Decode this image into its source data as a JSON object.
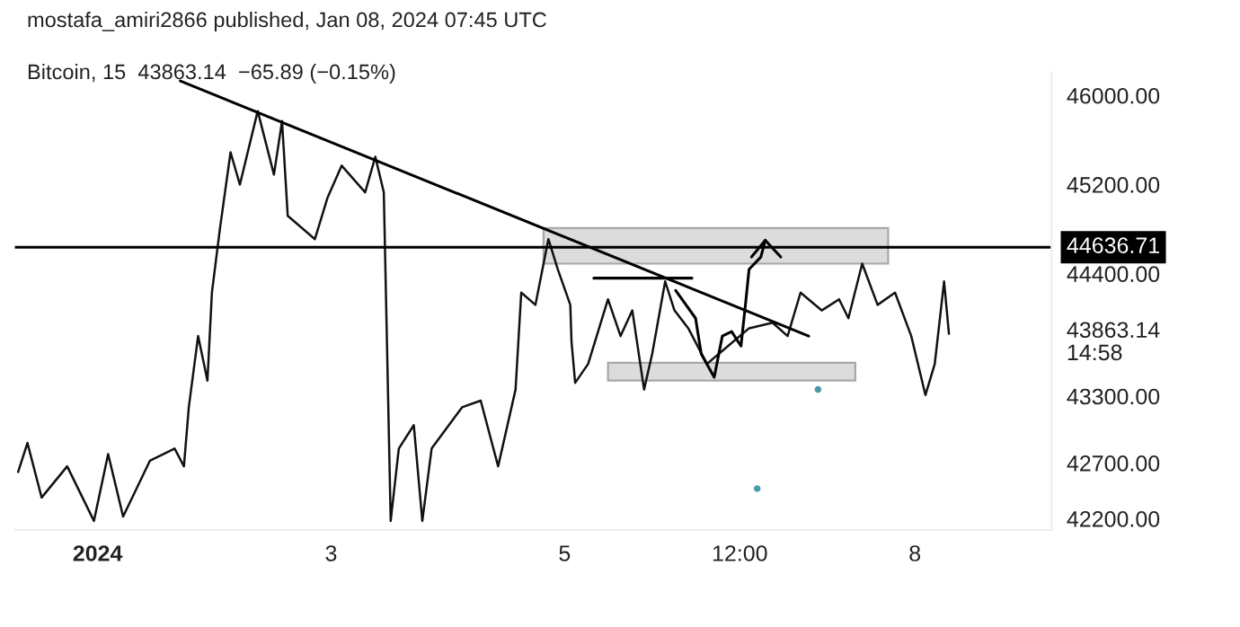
{
  "chart_data": {
    "type": "line",
    "subtitle": "mostafa_amiri2866 published, Jan 08, 2024 07:45 UTC",
    "title": "Bitcoin, 15  43863.14  −65.89 (−0.15%)",
    "series": [
      {
        "color": "#111111",
        "x": [
          "2023-12-31T07:40",
          "2023-12-31T09:35",
          "2023-12-31T12:30",
          "2023-12-31T17:45",
          "2023-12-31T23:15",
          "2024-01-01T02:10",
          "2024-01-01T05:15",
          "2024-01-01T10:45",
          "2024-01-01T15:50",
          "2024-01-01T17:45",
          "2024-01-01T18:45",
          "2024-01-01T20:40",
          "2024-01-01T22:35",
          "2024-01-01T23:30",
          "2024-01-02T01:10",
          "2024-01-02T03:20",
          "2024-01-02T05:15",
          "2024-01-02T08:55",
          "2024-01-02T12:15",
          "2024-01-02T13:55",
          "2024-01-02T15:05",
          "2024-01-02T20:40",
          "2024-01-02T23:15",
          "2024-01-03T02:10",
          "2024-01-03T07:00",
          "2024-01-03T09:05",
          "2024-01-03T10:50",
          "2024-01-03T12:15",
          "2024-01-03T13:55",
          "2024-01-03T17:00",
          "2024-01-03T18:45",
          "2024-01-03T20:40",
          "2024-01-04T02:55",
          "2024-01-04T06:45",
          "2024-01-04T10:20",
          "2024-01-04T13:55",
          "2024-01-04T15:05",
          "2024-01-04T18:00",
          "2024-01-04T20:40",
          "2024-01-04T22:35",
          "2024-01-05T01:10",
          "2024-01-05T01:25",
          "2024-01-05T02:10",
          "2024-01-05T04:50",
          "2024-01-05T08:55",
          "2024-01-05T11:30",
          "2024-01-05T13:55",
          "2024-01-05T16:20",
          "2024-01-05T18:00",
          "2024-01-05T20:40",
          "2024-01-05T22:35",
          "2024-01-06T01:25",
          "2024-01-06T05:15",
          "2024-01-06T09:35",
          "2024-01-06T13:55",
          "2024-01-06T18:45",
          "2024-01-06T21:50",
          "2024-01-07T00:30",
          "2024-01-07T04:50",
          "2024-01-07T08:25",
          "2024-01-07T10:20",
          "2024-01-07T13:10",
          "2024-01-07T16:20",
          "2024-01-07T19:55",
          "2024-01-07T23:15",
          "2024-01-08T02:10",
          "2024-01-08T04:05",
          "2024-01-08T06:00",
          "2024-01-08T07:00"
        ],
        "values": [
          42620,
          42880,
          42390,
          42670,
          42180,
          42780,
          42220,
          42720,
          42830,
          42670,
          43200,
          43840,
          43440,
          44230,
          44810,
          45490,
          45200,
          45860,
          45290,
          45770,
          44920,
          44710,
          45080,
          45370,
          45130,
          45450,
          45130,
          42180,
          42830,
          43040,
          42180,
          42830,
          43200,
          43260,
          42670,
          43360,
          44230,
          44120,
          44710,
          44440,
          44120,
          43790,
          43420,
          43590,
          44170,
          43840,
          44070,
          43360,
          43680,
          44330,
          44070,
          43910,
          43590,
          43750,
          43910,
          43960,
          43840,
          44230,
          44070,
          44170,
          44000,
          44490,
          44120,
          44230,
          43840,
          43310,
          43590,
          44330,
          43860
        ]
      },
      {
        "type": "line",
        "color": "#000000",
        "x": [
          "2024-01-01T17:00",
          "2024-01-07T02:10"
        ],
        "values": [
          46130,
          43840
        ]
      },
      {
        "type": "line",
        "color": "#000000",
        "x": [
          "2024-01-05T06:00",
          "2024-01-06T02:10"
        ],
        "values": [
          44360,
          44360
        ]
      },
      {
        "type": "line",
        "color": "#000000",
        "x": [
          "2024-01-05T22:50",
          "2024-01-06T02:55",
          "2024-01-06T04:05",
          "2024-01-06T06:45",
          "2024-01-06T08:25",
          "2024-01-06T10:20",
          "2024-01-06T12:15",
          "2024-01-06T13:10",
          "2024-01-06T13:55",
          "2024-01-06T16:20",
          "2024-01-06T17:15"
        ],
        "values": [
          44250,
          44000,
          43680,
          43470,
          43840,
          43880,
          43750,
          44120,
          44440,
          44550,
          44700
        ]
      },
      {
        "type": "line",
        "color": "#000000",
        "x": [
          "2024-01-06T14:25",
          "2024-01-06T17:15",
          "2024-01-06T20:25"
        ],
        "values": [
          44550,
          44700,
          44550
        ]
      },
      {
        "type": "area",
        "color": "#d6d6d6",
        "x": [
          "2024-01-04T19:40",
          "2024-01-07T18:30",
          "2024-01-07T18:30",
          "2024-01-04T19:40",
          "2024-01-04T19:40"
        ],
        "values": [
          44810,
          44810,
          44490,
          44490,
          44810
        ]
      },
      {
        "type": "area",
        "color": "#d6d6d6",
        "x": [
          "2024-01-05T08:55",
          "2024-01-07T11:45",
          "2024-01-07T11:45",
          "2024-01-05T08:55",
          "2024-01-05T08:55"
        ],
        "values": [
          43600,
          43600,
          43440,
          43440,
          43600
        ]
      },
      {
        "type": "scatter",
        "color": "#4a9aa8",
        "x": [
          "2024-01-07T04:05",
          "2024-01-06T15:35"
        ],
        "values": [
          43360,
          42470
        ]
      }
    ],
    "ref_lines": [
      {
        "axis": "y",
        "value": 44636.71,
        "label": "44636.71",
        "color": "#000000"
      }
    ],
    "annotations": [
      "43863.14\n14:58"
    ],
    "xlim": [
      "2023-12-31T07:00",
      "2024-01-09T04:05"
    ],
    "xticks": [
      {
        "value": "2024-01-01T00:00",
        "label": "2024"
      },
      {
        "value": "2024-01-03T00:00",
        "label": "3"
      },
      {
        "value": "2024-01-05T00:00",
        "label": "5"
      },
      {
        "value": "2024-01-06T12:00",
        "label": "12:00"
      },
      {
        "value": "2024-01-08T00:00",
        "label": "8"
      }
    ],
    "ylim": [
      42100,
      46210
    ],
    "yticks": [
      {
        "value": 46000,
        "label": "46000.00"
      },
      {
        "value": 45200,
        "label": "45200.00"
      },
      {
        "value": 44400,
        "label": "44400.00"
      },
      {
        "value": 43300,
        "label": "43300.00"
      },
      {
        "value": 42700,
        "label": "42700.00"
      },
      {
        "value": 42200,
        "label": "42200.00"
      }
    ],
    "grid": false,
    "legend": false
  }
}
